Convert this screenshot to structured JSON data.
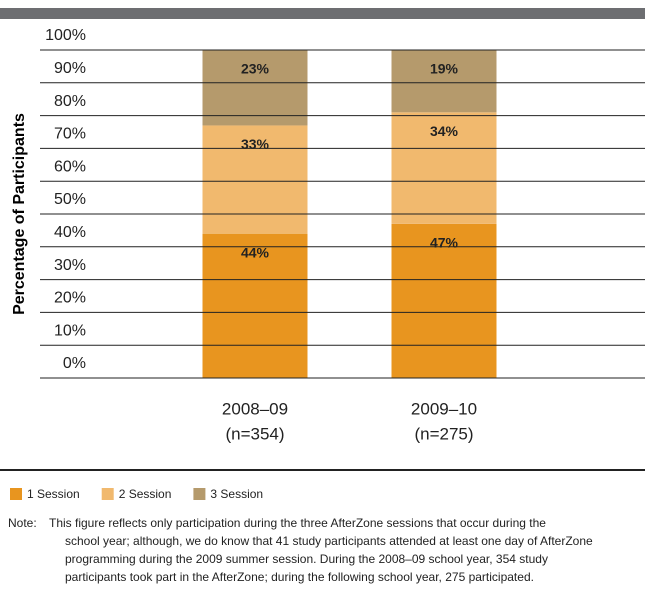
{
  "chart_data": {
    "type": "stacked-bar",
    "y_label": "Percentage of Participants",
    "categories": [
      "2008–09",
      "2009–10"
    ],
    "category_notes": [
      "(n=354)",
      "(n=275)"
    ],
    "series": [
      {
        "name": "1 Session",
        "color": "#e8951f",
        "values": [
          44,
          47
        ],
        "value_labels": [
          "44%",
          "47%"
        ]
      },
      {
        "name": "2 Session",
        "color": "#f1b96e",
        "values": [
          33,
          34
        ],
        "value_labels": [
          "33%",
          "34%"
        ]
      },
      {
        "name": "3 Session",
        "color": "#b59a6c",
        "values": [
          23,
          19
        ],
        "value_labels": [
          "23%",
          "19%"
        ]
      }
    ],
    "ylim": [
      0,
      100
    ],
    "yticks": [
      {
        "value": 0,
        "label": "0%"
      },
      {
        "value": 10,
        "label": "10%"
      },
      {
        "value": 20,
        "label": "20%"
      },
      {
        "value": 30,
        "label": "30%"
      },
      {
        "value": 40,
        "label": "40%"
      },
      {
        "value": 50,
        "label": "50%"
      },
      {
        "value": 60,
        "label": "60%"
      },
      {
        "value": 70,
        "label": "70%"
      },
      {
        "value": 80,
        "label": "80%"
      },
      {
        "value": 90,
        "label": "90%"
      },
      {
        "value": 100,
        "label": "100%"
      }
    ],
    "grid": true
  },
  "note": {
    "label": "Note:",
    "lines": [
      "This figure reflects only participation during the three AfterZone sessions that occur during the",
      "school year; although, we do know that 41 study participants attended at least one day of AfterZone",
      "programming during the 2009 summer session. During the 2008–09 school year, 354 study",
      "participants took part in the AfterZone; during the following school year, 275 participated."
    ]
  }
}
